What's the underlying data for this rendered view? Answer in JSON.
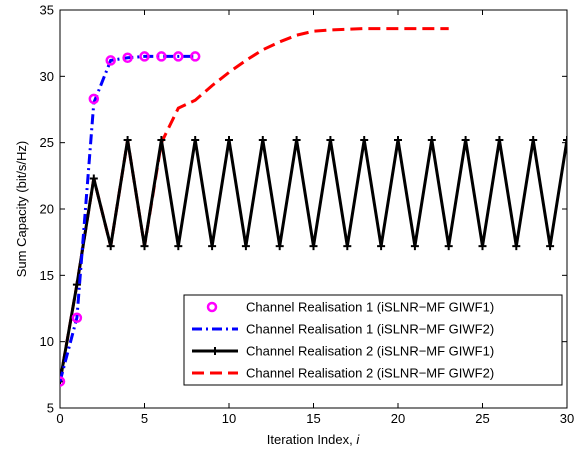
{
  "chart_data": {
    "type": "line",
    "xlabel_prefix": "Iteration Index, ",
    "xlabel_var": "i",
    "ylabel": "Sum Capacity (bit/s/Hz)",
    "xlim": [
      0,
      30
    ],
    "ylim": [
      5,
      35
    ],
    "xticks": [
      0,
      5,
      10,
      15,
      20,
      25,
      30
    ],
    "yticks": [
      5,
      10,
      15,
      20,
      25,
      30,
      35
    ],
    "grid": false,
    "legend_position": "bottom-right",
    "series": [
      {
        "name": "Channel Realisation 1 (iSLNR−MF GIWF1)",
        "color": "#ff00ff",
        "style": "markers-circle",
        "x": [
          0,
          1,
          2,
          3,
          4,
          5,
          6,
          7,
          8
        ],
        "y": [
          7.0,
          11.8,
          28.3,
          31.2,
          31.4,
          31.5,
          31.5,
          31.5,
          31.5
        ]
      },
      {
        "name": "Channel Realisation 1 (iSLNR−MF GIWF2)",
        "color": "#0000ff",
        "style": "dashdot",
        "x": [
          0,
          1,
          2,
          3,
          4,
          5,
          6,
          7,
          8
        ],
        "y": [
          7.0,
          11.8,
          28.0,
          31.2,
          31.4,
          31.5,
          31.5,
          31.5,
          31.5
        ]
      },
      {
        "name": "Channel Realisation 2 (iSLNR−MF GIWF1)",
        "color": "#000000",
        "style": "solid-plus",
        "x": [
          0,
          1,
          2,
          3,
          4,
          5,
          6,
          7,
          8,
          9,
          10,
          11,
          12,
          13,
          14,
          15,
          16,
          17,
          18,
          19,
          20,
          21,
          22,
          23,
          24,
          25,
          26,
          27,
          28,
          29,
          30
        ],
        "y": [
          7.0,
          14.3,
          22.3,
          17.2,
          25.2,
          17.2,
          25.2,
          17.2,
          25.2,
          17.2,
          25.2,
          17.2,
          25.2,
          17.2,
          25.2,
          17.2,
          25.2,
          17.2,
          25.2,
          17.2,
          25.2,
          17.2,
          25.2,
          17.2,
          25.2,
          17.2,
          25.2,
          17.2,
          25.2,
          17.2,
          25.2
        ]
      },
      {
        "name": "Channel Realisation 2 (iSLNR−MF GIWF2)",
        "color": "#ff0000",
        "style": "dashed",
        "x": [
          0,
          1,
          2,
          3,
          4,
          5,
          6,
          7,
          8,
          9,
          10,
          11,
          12,
          13,
          14,
          15,
          16,
          17,
          18,
          19,
          20,
          21,
          22,
          23
        ],
        "y": [
          7.0,
          14.3,
          22.3,
          17.2,
          25.2,
          17.2,
          25.0,
          27.6,
          28.2,
          29.3,
          30.3,
          31.2,
          32.0,
          32.6,
          33.1,
          33.4,
          33.5,
          33.55,
          33.6,
          33.6,
          33.6,
          33.6,
          33.6,
          33.6
        ]
      }
    ]
  }
}
